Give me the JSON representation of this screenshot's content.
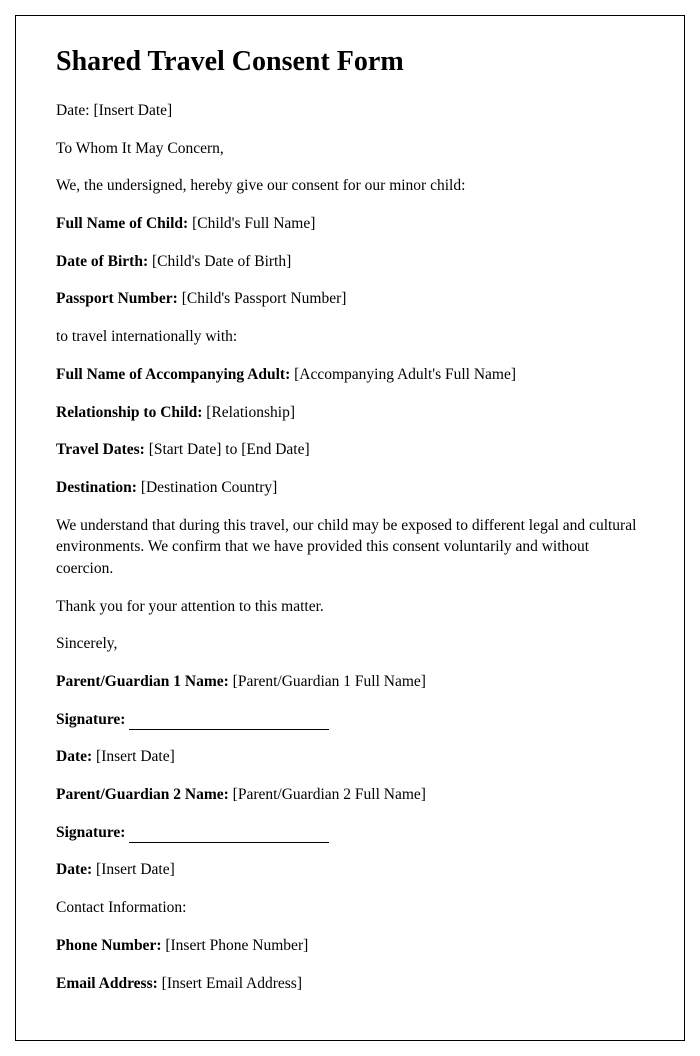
{
  "title": "Shared Travel Consent Form",
  "date_line": {
    "label": "Date: ",
    "value": "[Insert Date]"
  },
  "salutation": "To Whom It May Concern,",
  "intro": "We, the undersigned, hereby give our consent for our minor child:",
  "child_name": {
    "label": "Full Name of Child: ",
    "value": "[Child's Full Name]"
  },
  "child_dob": {
    "label": "Date of Birth: ",
    "value": "[Child's Date of Birth]"
  },
  "passport": {
    "label": "Passport Number: ",
    "value": "[Child's Passport Number]"
  },
  "travel_with": "to travel internationally with:",
  "adult_name": {
    "label": "Full Name of Accompanying Adult: ",
    "value": "[Accompanying Adult's Full Name]"
  },
  "relationship": {
    "label": "Relationship to Child: ",
    "value": "[Relationship]"
  },
  "travel_dates": {
    "label": "Travel Dates: ",
    "value": "[Start Date] to [End Date]"
  },
  "destination": {
    "label": "Destination: ",
    "value": "[Destination Country]"
  },
  "understanding": "We understand that during this travel, our child may be exposed to different legal and cultural environments. We confirm that we have provided this consent voluntarily and without coercion.",
  "thanks": "Thank you for your attention to this matter.",
  "closing": "Sincerely,",
  "guardian1_name": {
    "label": "Parent/Guardian 1 Name: ",
    "value": "[Parent/Guardian 1 Full Name]"
  },
  "signature1_label": "Signature: ",
  "date1": {
    "label": "Date: ",
    "value": "[Insert Date]"
  },
  "guardian2_name": {
    "label": "Parent/Guardian 2 Name: ",
    "value": "[Parent/Guardian 2 Full Name]"
  },
  "signature2_label": "Signature: ",
  "date2": {
    "label": "Date: ",
    "value": "[Insert Date]"
  },
  "contact_header": "Contact Information:",
  "phone": {
    "label": "Phone Number: ",
    "value": "[Insert Phone Number]"
  },
  "email": {
    "label": "Email Address: ",
    "value": "[Insert Email Address]"
  }
}
